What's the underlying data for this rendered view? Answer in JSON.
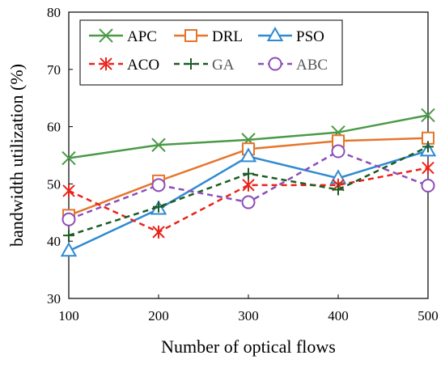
{
  "chart_data": {
    "type": "line",
    "xlabel": "Number of optical flows",
    "ylabel": "bandwidth utilization  (%)",
    "x": [
      100,
      200,
      300,
      400,
      500
    ],
    "xlim": [
      100,
      500
    ],
    "ylim": [
      30,
      80
    ],
    "xticks": [
      "100",
      "200",
      "300",
      "400",
      "500"
    ],
    "yticks": [
      "30",
      "40",
      "50",
      "60",
      "70",
      "80"
    ],
    "grid": false,
    "legend_position": "top",
    "series": [
      {
        "name": "APC",
        "values": [
          54.5,
          56.8,
          57.7,
          59.0,
          62.0
        ],
        "color": "#4a9a47",
        "marker": "x",
        "dash": false,
        "label_color": "#000000"
      },
      {
        "name": "DRL",
        "values": [
          44.5,
          50.5,
          56.1,
          57.5,
          58.0
        ],
        "color": "#e6752c",
        "marker": "square",
        "dash": false,
        "label_color": "#000000"
      },
      {
        "name": "PSO",
        "values": [
          38.3,
          45.6,
          54.8,
          51.0,
          55.8
        ],
        "color": "#2f8ad2",
        "marker": "triangle",
        "dash": false,
        "label_color": "#000000"
      },
      {
        "name": "ACO",
        "values": [
          48.8,
          41.6,
          49.8,
          49.8,
          52.8
        ],
        "color": "#e8241c",
        "marker": "asterisk",
        "dash": true,
        "label_color": "#000000"
      },
      {
        "name": "GA",
        "values": [
          41.0,
          46.0,
          51.8,
          49.0,
          56.5
        ],
        "color": "#1d5c24",
        "marker": "plus",
        "dash": true,
        "label_color": "#555555"
      },
      {
        "name": "ABC",
        "values": [
          43.8,
          49.8,
          46.8,
          55.7,
          49.7
        ],
        "color": "#8c4fb8",
        "marker": "circle",
        "dash": true,
        "label_color": "#555555"
      }
    ]
  }
}
